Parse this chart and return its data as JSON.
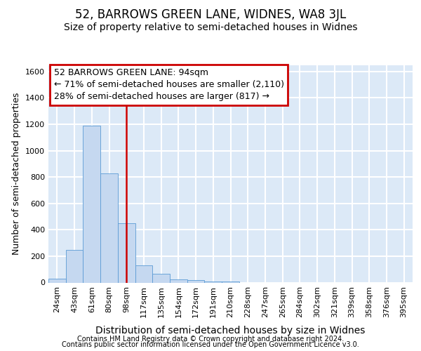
{
  "title": "52, BARROWS GREEN LANE, WIDNES, WA8 3JL",
  "subtitle": "Size of property relative to semi-detached houses in Widnes",
  "xlabel": "Distribution of semi-detached houses by size in Widnes",
  "ylabel": "Number of semi-detached properties",
  "footer_line1": "Contains HM Land Registry data © Crown copyright and database right 2024.",
  "footer_line2": "Contains public sector information licensed under the Open Government Licence v3.0.",
  "bin_labels": [
    "24sqm",
    "43sqm",
    "61sqm",
    "80sqm",
    "98sqm",
    "117sqm",
    "135sqm",
    "154sqm",
    "172sqm",
    "191sqm",
    "210sqm",
    "228sqm",
    "247sqm",
    "265sqm",
    "284sqm",
    "302sqm",
    "321sqm",
    "339sqm",
    "358sqm",
    "376sqm",
    "395sqm"
  ],
  "bar_values": [
    30,
    250,
    1190,
    830,
    450,
    130,
    65,
    25,
    20,
    10,
    10,
    0,
    0,
    0,
    0,
    0,
    0,
    0,
    0,
    0,
    0
  ],
  "bar_color": "#c5d8f0",
  "bar_edge_color": "#5b9bd5",
  "vline_x": 4.0,
  "vline_color": "#cc0000",
  "annotation_line1": "52 BARROWS GREEN LANE: 94sqm",
  "annotation_line2": "← 71% of semi-detached houses are smaller (2,110)",
  "annotation_line3": "28% of semi-detached houses are larger (817) →",
  "annotation_box_color": "#cc0000",
  "ylim": [
    0,
    1650
  ],
  "yticks": [
    0,
    200,
    400,
    600,
    800,
    1000,
    1200,
    1400,
    1600
  ],
  "background_color": "#dce9f7",
  "grid_color": "#ffffff",
  "title_fontsize": 12,
  "subtitle_fontsize": 10,
  "xlabel_fontsize": 10,
  "ylabel_fontsize": 9,
  "tick_fontsize": 8,
  "annotation_fontsize": 9,
  "footer_fontsize": 7
}
